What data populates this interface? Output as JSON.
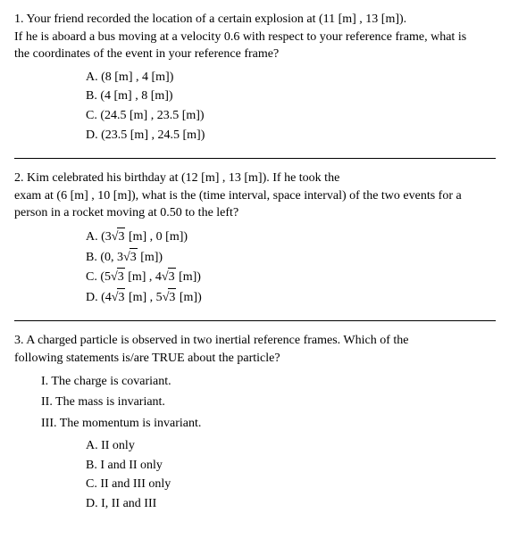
{
  "q1": {
    "number": "1.",
    "text_line1": "Your friend recorded the location of a certain explosion at (11 [m] , 13 [m]).",
    "text_line2": "If he is aboard a bus moving at a velocity 0.6 with respect to your reference frame, what is",
    "text_line3": "the coordinates of the event in your reference frame?",
    "choices": {
      "a": "A. (8 [m] , 4 [m])",
      "b": "B. (4 [m] , 8 [m])",
      "c": "C. (24.5 [m] , 23.5 [m])",
      "d": "D. (23.5 [m] , 24.5 [m])"
    }
  },
  "q2": {
    "number": "2.",
    "text_line1": "Kim celebrated his birthday at (12 [m] , 13 [m]).  If he took the",
    "text_line2": "exam at (6 [m] , 10 [m]), what is the (time interval, space interval) of the two events for a",
    "text_line3": "person in a rocket moving at 0.50 to the left?",
    "choices": {
      "a_pre": "A. (3",
      "a_sqrt": "3",
      "a_post": " [m] , 0 [m])",
      "b_pre": "B. (0, 3",
      "b_sqrt": "3",
      "b_post": " [m])",
      "c_pre": "C. (5",
      "c_sqrt1": "3",
      "c_mid": " [m] , 4",
      "c_sqrt2": "3",
      "c_post": " [m])",
      "d_pre": "D. (4",
      "d_sqrt1": "3",
      "d_mid": " [m] , 5",
      "d_sqrt2": "3",
      "d_post": " [m])"
    }
  },
  "q3": {
    "number": "3.",
    "text_line1": "A charged particle is observed in two inertial reference frames.  Which of the",
    "text_line2": "following statements is/are TRUE about the particle?",
    "statements": {
      "i": "I. The charge is covariant.",
      "ii": "II. The mass is invariant.",
      "iii": "III. The momentum is invariant."
    },
    "choices": {
      "a": "A. II only",
      "b": "B. I and II only",
      "c": "C. II and III only",
      "d": "D. I, II and III"
    }
  },
  "sqrt_symbol": "√"
}
